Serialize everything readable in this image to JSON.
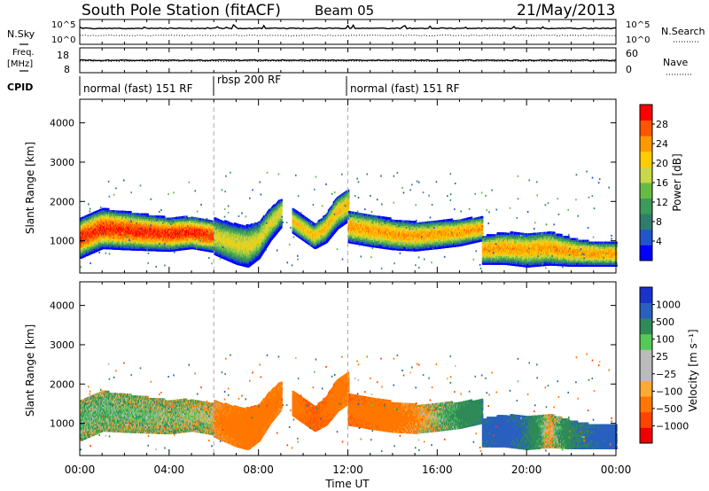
{
  "header": {
    "station": "South Pole Station (fitACF)",
    "beam": "Beam 05",
    "date": "21/May/2013"
  },
  "top_strip": {
    "left_label": "N.Sky",
    "left_ticks": [
      "10^5",
      "10^0"
    ],
    "right_ticks": [
      "10^5",
      "10^0"
    ],
    "right_label": "N.Search"
  },
  "freq_strip": {
    "left_label_1": "Freq.",
    "left_label_2": "[MHz]",
    "left_ticks": [
      "18",
      "8"
    ],
    "right_ticks": [
      "60",
      "0"
    ],
    "right_label": "Nave"
  },
  "cpid": {
    "label": "CPID",
    "segments": [
      {
        "label": "normal (fast) 151 RF",
        "start_hour": 0,
        "end_hour": 6
      },
      {
        "label": "rbsp 200 RF",
        "start_hour": 6,
        "end_hour": 12
      },
      {
        "label": "normal (fast) 151 RF",
        "start_hour": 12,
        "end_hour": 24
      }
    ]
  },
  "colors": {
    "power": [
      "#0000ff",
      "#2255cc",
      "#2e7d6e",
      "#3c9a5a",
      "#66bb44",
      "#c8d84a",
      "#ffcc00",
      "#ff9900",
      "#ff5500",
      "#ff0000"
    ],
    "velocity": [
      "#ee0000",
      "#ff4400",
      "#ff7700",
      "#ffaa33",
      "#bbbbbb",
      "#bbbbbb",
      "#55c855",
      "#2e8b57",
      "#2a5fbf",
      "#1a33cc"
    ]
  },
  "chart_data": [
    {
      "type": "heatmap",
      "title": "Power",
      "xlabel": "Time UT",
      "ylabel": "Slant Range [km]",
      "xlim": [
        0,
        24
      ],
      "ylim": [
        180,
        4600
      ],
      "xticks": [
        "00:00",
        "04:00",
        "08:00",
        "12:00",
        "16:00",
        "20:00",
        "00:00"
      ],
      "xtick_values": [
        0,
        4,
        8,
        12,
        16,
        20,
        24
      ],
      "yticks": [
        1000,
        2000,
        3000,
        4000
      ],
      "colorbar": {
        "label": "Power [dB]",
        "ticks": [
          "4",
          "8",
          "12",
          "16",
          "20",
          "24",
          "28"
        ],
        "range": [
          0,
          30
        ]
      },
      "dashed_lines_hour": [
        6,
        12
      ],
      "bands": [
        {
          "t": [
            0,
            1,
            2,
            3,
            4,
            5,
            6
          ],
          "center": [
            1050,
            1300,
            1250,
            1200,
            1150,
            1200,
            1100
          ],
          "width": [
            500,
            500,
            480,
            450,
            420,
            400,
            400
          ],
          "peak": 27
        },
        {
          "t": [
            6,
            7,
            7.5,
            8,
            8.5,
            9
          ],
          "center": [
            1100,
            900,
            850,
            1000,
            1400,
            1700
          ],
          "width": [
            450,
            500,
            520,
            450,
            400,
            350
          ],
          "peak": 18
        },
        {
          "t": [
            9.5,
            10,
            10.5,
            11,
            11.5,
            12
          ],
          "center": [
            1500,
            1300,
            1100,
            1300,
            1700,
            1900
          ],
          "width": [
            300,
            300,
            300,
            350,
            400,
            400
          ],
          "peak": 20
        },
        {
          "t": [
            12,
            13,
            14,
            15,
            16,
            17,
            18
          ],
          "center": [
            1350,
            1250,
            1150,
            1100,
            1150,
            1200,
            1300
          ],
          "width": [
            400,
            400,
            380,
            360,
            350,
            330,
            300
          ],
          "peak": 22
        },
        {
          "t": [
            18,
            19,
            20,
            21,
            22,
            23,
            24
          ],
          "center": [
            750,
            800,
            750,
            800,
            700,
            650,
            650
          ],
          "width": [
            350,
            400,
            420,
            420,
            350,
            300,
            300
          ],
          "peak": 22
        }
      ]
    },
    {
      "type": "heatmap",
      "title": "Velocity",
      "xlabel": "Time UT",
      "ylabel": "Slant Range [km]",
      "xlim": [
        0,
        24
      ],
      "ylim": [
        180,
        4600
      ],
      "xticks": [
        "00:00",
        "04:00",
        "08:00",
        "12:00",
        "16:00",
        "20:00",
        "00:00"
      ],
      "xtick_values": [
        0,
        4,
        8,
        12,
        16,
        20,
        24
      ],
      "yticks": [
        1000,
        2000,
        3000,
        4000
      ],
      "colorbar": {
        "label": "Velocity [m s⁻¹]",
        "ticks": [
          "1000",
          "500",
          "100",
          "25",
          "−25",
          "−100",
          "−500",
          "−1000"
        ],
        "range": [
          -1200,
          1200
        ]
      },
      "dashed_lines_hour": [
        6,
        12
      ],
      "bands": [
        {
          "t": [
            0,
            1,
            2,
            3,
            4,
            5,
            6
          ],
          "center": [
            1050,
            1300,
            1250,
            1200,
            1150,
            1200,
            1100
          ],
          "width": [
            500,
            500,
            480,
            450,
            420,
            400,
            400
          ],
          "velocity": [
            60,
            80,
            60,
            50,
            40,
            20,
            0
          ]
        },
        {
          "t": [
            6,
            7,
            7.5,
            8,
            8.5,
            9
          ],
          "center": [
            1100,
            900,
            850,
            1000,
            1400,
            1700
          ],
          "width": [
            450,
            500,
            520,
            450,
            400,
            350
          ],
          "velocity": [
            -150,
            -250,
            -300,
            -300,
            -250,
            -200
          ]
        },
        {
          "t": [
            9.5,
            10,
            10.5,
            11,
            11.5,
            12
          ],
          "center": [
            1500,
            1300,
            1100,
            1300,
            1700,
            1900
          ],
          "width": [
            300,
            300,
            300,
            350,
            400,
            400
          ],
          "velocity": [
            -300,
            -400,
            -500,
            -400,
            -300,
            -200
          ]
        },
        {
          "t": [
            12,
            13,
            14,
            15,
            16,
            17,
            18
          ],
          "center": [
            1350,
            1250,
            1150,
            1100,
            1150,
            1200,
            1300
          ],
          "width": [
            400,
            400,
            380,
            360,
            350,
            330,
            300
          ],
          "velocity": [
            -400,
            -350,
            -250,
            -150,
            50,
            200,
            400
          ]
        },
        {
          "t": [
            18,
            19,
            20,
            21,
            22,
            23,
            24
          ],
          "center": [
            750,
            800,
            750,
            800,
            700,
            650,
            650
          ],
          "width": [
            350,
            400,
            420,
            420,
            350,
            300,
            300
          ],
          "velocity": [
            600,
            700,
            500,
            -100,
            400,
            600,
            800
          ]
        }
      ]
    }
  ]
}
